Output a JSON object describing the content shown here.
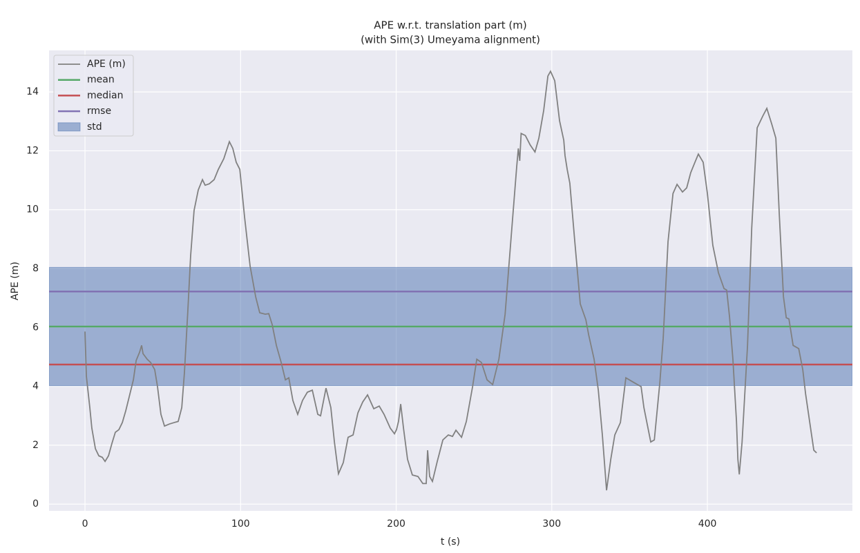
{
  "chart_data": {
    "type": "line",
    "title": "APE w.r.t. translation part (m)",
    "subtitle": "(with Sim(3) Umeyama alignment)",
    "x_label": "t (s)",
    "y_label": "APE (m)",
    "xlim": [
      -23.1,
      493.2
    ],
    "ylim": [
      -0.23,
      15.41
    ],
    "xticks": [
      0,
      100,
      200,
      300,
      400
    ],
    "yticks": [
      0,
      2,
      4,
      6,
      8,
      10,
      12,
      14
    ],
    "grid": true,
    "legend": "upper left",
    "x": [
      0,
      0.9,
      3.1,
      4.4,
      6.7,
      8.9,
      11.1,
      12.9,
      15.1,
      17.3,
      19.5,
      21.8,
      24,
      26.2,
      28.4,
      31.1,
      32.9,
      35.1,
      36.4,
      37.3,
      40,
      42.2,
      44.8,
      46.6,
      48.8,
      51.1,
      54.2,
      57.3,
      59.9,
      62.2,
      63.9,
      66.1,
      67.9,
      70.1,
      72.8,
      75.5,
      77.2,
      79.9,
      83,
      85.7,
      89.2,
      92.8,
      95,
      97.2,
      99.5,
      102.6,
      106.1,
      109.7,
      112.3,
      115.9,
      118.1,
      120.3,
      123,
      126.1,
      128.8,
      131,
      133.6,
      136.7,
      139.8,
      142.9,
      146.1,
      149.6,
      151.4,
      154.9,
      158,
      160.3,
      162.9,
      166,
      169.1,
      172.3,
      175.4,
      178.5,
      181.6,
      185.6,
      189.1,
      192.2,
      196.2,
      198.9,
      200.2,
      201.5,
      202.9,
      204.7,
      207.3,
      210.4,
      214,
      217.1,
      219.3,
      220.2,
      221.5,
      223.3,
      226.4,
      230,
      233.5,
      236.2,
      238.4,
      242,
      245.1,
      249.1,
      251.8,
      254.8,
      258.4,
      262,
      266,
      270,
      274,
      277.5,
      278.5,
      279.4,
      280.3,
      283,
      286.1,
      289.2,
      291.7,
      294.8,
      297.5,
      299.2,
      301.9,
      305,
      307.7,
      308.5,
      309.9,
      311.6,
      314.8,
      318.3,
      321.9,
      323.7,
      327.2,
      329.9,
      332.5,
      335.2,
      337.9,
      340.5,
      344.1,
      347.6,
      352.1,
      357.4,
      359.2,
      363.6,
      365.9,
      369.4,
      371.6,
      374.7,
      377.9,
      380.5,
      384,
      386.7,
      389.3,
      392,
      394.2,
      397.3,
      400,
      403.5,
      407.1,
      410.7,
      412.4,
      414.2,
      416.4,
      418.7,
      419.6,
      420.5,
      422.3,
      425.8,
      428.5,
      432,
      435.6,
      438.2,
      441.4,
      444,
      446.2,
      448.9,
      450.7,
      452.4,
      455.1,
      458.7,
      461.3,
      463.1,
      465.8,
      468.4,
      470.2
    ],
    "series": [
      {
        "name": "APE (m)",
        "color": "#808080",
        "values": [
          5.86,
          4.34,
          3.28,
          2.58,
          1.88,
          1.64,
          1.59,
          1.45,
          1.64,
          2.06,
          2.44,
          2.53,
          2.77,
          3.17,
          3.64,
          4.22,
          4.88,
          5.16,
          5.39,
          5.11,
          4.92,
          4.81,
          4.57,
          3.99,
          3.05,
          2.65,
          2.72,
          2.77,
          2.81,
          3.28,
          4.46,
          6.57,
          8.44,
          9.97,
          10.67,
          11.02,
          10.83,
          10.88,
          11.02,
          11.37,
          11.73,
          12.31,
          12.08,
          11.61,
          11.37,
          9.73,
          8.09,
          7.04,
          6.5,
          6.45,
          6.47,
          6.1,
          5.39,
          4.81,
          4.22,
          4.29,
          3.52,
          3.05,
          3.52,
          3.8,
          3.87,
          3.05,
          3.0,
          3.94,
          3.28,
          2.11,
          1.03,
          1.41,
          2.27,
          2.35,
          3.1,
          3.47,
          3.71,
          3.24,
          3.33,
          3.05,
          2.58,
          2.39,
          2.53,
          2.81,
          3.4,
          2.58,
          1.52,
          0.99,
          0.94,
          0.7,
          0.7,
          1.83,
          0.94,
          0.77,
          1.45,
          2.18,
          2.35,
          2.3,
          2.51,
          2.27,
          2.81,
          3.99,
          4.92,
          4.81,
          4.22,
          4.06,
          4.92,
          6.45,
          9.15,
          11.49,
          12.08,
          11.66,
          12.59,
          12.52,
          12.2,
          11.96,
          12.43,
          13.37,
          14.54,
          14.7,
          14.38,
          13.02,
          12.36,
          11.84,
          11.37,
          10.9,
          8.91,
          6.8,
          6.26,
          5.75,
          4.92,
          3.87,
          2.35,
          0.47,
          1.52,
          2.35,
          2.77,
          4.29,
          4.15,
          3.99,
          3.28,
          2.11,
          2.18,
          4.1,
          5.63,
          8.91,
          10.55,
          10.86,
          10.6,
          10.74,
          11.26,
          11.61,
          11.89,
          11.61,
          10.55,
          8.79,
          7.86,
          7.32,
          7.27,
          6.38,
          4.92,
          2.81,
          1.52,
          1.01,
          2.11,
          5.39,
          9.38,
          12.78,
          13.18,
          13.44,
          12.9,
          12.43,
          9.85,
          7.04,
          6.33,
          6.29,
          5.39,
          5.28,
          4.57,
          3.75,
          2.77,
          1.83,
          1.74
        ]
      }
    ],
    "stats": [
      {
        "name": "mean",
        "color": "#55a868",
        "value": 6.03
      },
      {
        "name": "median",
        "color": "#c44e52",
        "value": 4.74
      },
      {
        "name": "rmse",
        "color": "#8172b3",
        "value": 7.22
      }
    ],
    "std": {
      "name": "std",
      "color": "#4c72b0",
      "value": 2.01
    }
  }
}
